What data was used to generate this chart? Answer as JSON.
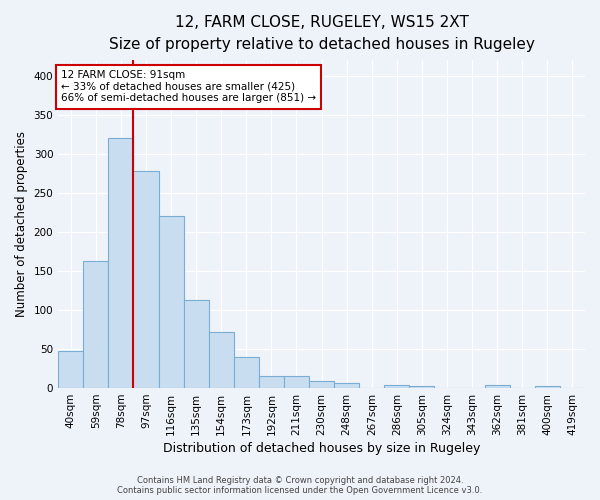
{
  "title": "12, FARM CLOSE, RUGELEY, WS15 2XT",
  "subtitle": "Size of property relative to detached houses in Rugeley",
  "xlabel": "Distribution of detached houses by size in Rugeley",
  "ylabel": "Number of detached properties",
  "categories": [
    "40sqm",
    "59sqm",
    "78sqm",
    "97sqm",
    "116sqm",
    "135sqm",
    "154sqm",
    "173sqm",
    "192sqm",
    "211sqm",
    "230sqm",
    "248sqm",
    "267sqm",
    "286sqm",
    "305sqm",
    "324sqm",
    "343sqm",
    "362sqm",
    "381sqm",
    "400sqm",
    "419sqm"
  ],
  "values": [
    47,
    163,
    320,
    278,
    220,
    113,
    72,
    40,
    16,
    15,
    9,
    7,
    0,
    4,
    3,
    0,
    0,
    4,
    0,
    3,
    0
  ],
  "bar_color": "#c9ddf0",
  "bar_edge_color": "#7aadd4",
  "vline_x": 2.5,
  "vline_color": "#cc0000",
  "annotation_line1": "12 FARM CLOSE: 91sqm",
  "annotation_line2": "← 33% of detached houses are smaller (425)",
  "annotation_line3": "66% of semi-detached houses are larger (851) →",
  "annotation_box_color": "#ffffff",
  "annotation_box_edge": "#cc0000",
  "ylim": [
    0,
    420
  ],
  "yticks": [
    0,
    50,
    100,
    150,
    200,
    250,
    300,
    350,
    400
  ],
  "footer1": "Contains HM Land Registry data © Crown copyright and database right 2024.",
  "footer2": "Contains public sector information licensed under the Open Government Licence v3.0.",
  "background_color": "#eef2f9",
  "grid_color": "#ffffff",
  "title_fontsize": 11,
  "subtitle_fontsize": 9.5,
  "tick_fontsize": 7.5,
  "ylabel_fontsize": 8.5,
  "xlabel_fontsize": 9,
  "footer_fontsize": 6,
  "annotation_fontsize": 7.5
}
